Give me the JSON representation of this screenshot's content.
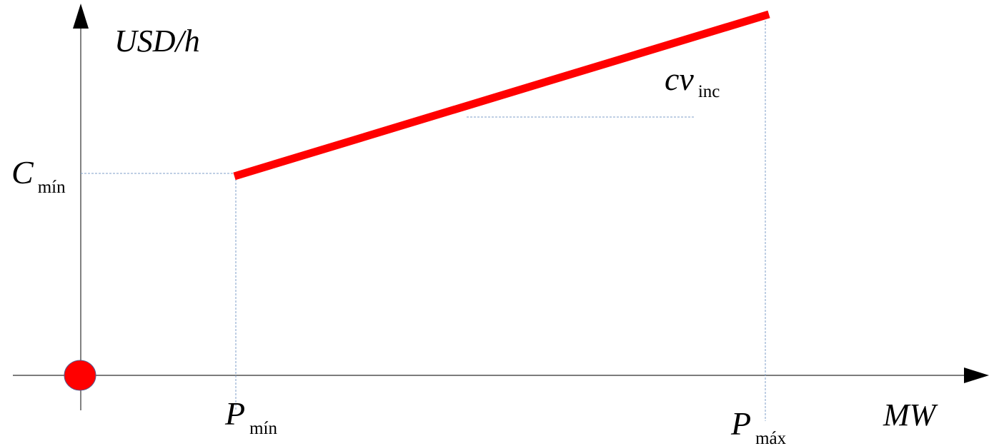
{
  "y_axis_label": "USD/h",
  "x_axis_label": "MW",
  "c_min": {
    "main": "C",
    "sub": "mín"
  },
  "p_min": {
    "main": "P",
    "sub": "mín"
  },
  "p_max": {
    "main": "P",
    "sub": "máx"
  },
  "slope_label": {
    "main": "cv",
    "sub": "inc"
  },
  "colors": {
    "axis": "#2f2f2f",
    "cost_line": "#ff0000",
    "guide_line": "#7f9fc8",
    "origin_fill": "#ff0000",
    "origin_stroke": "#5a5a8a",
    "text": "#000000"
  }
}
